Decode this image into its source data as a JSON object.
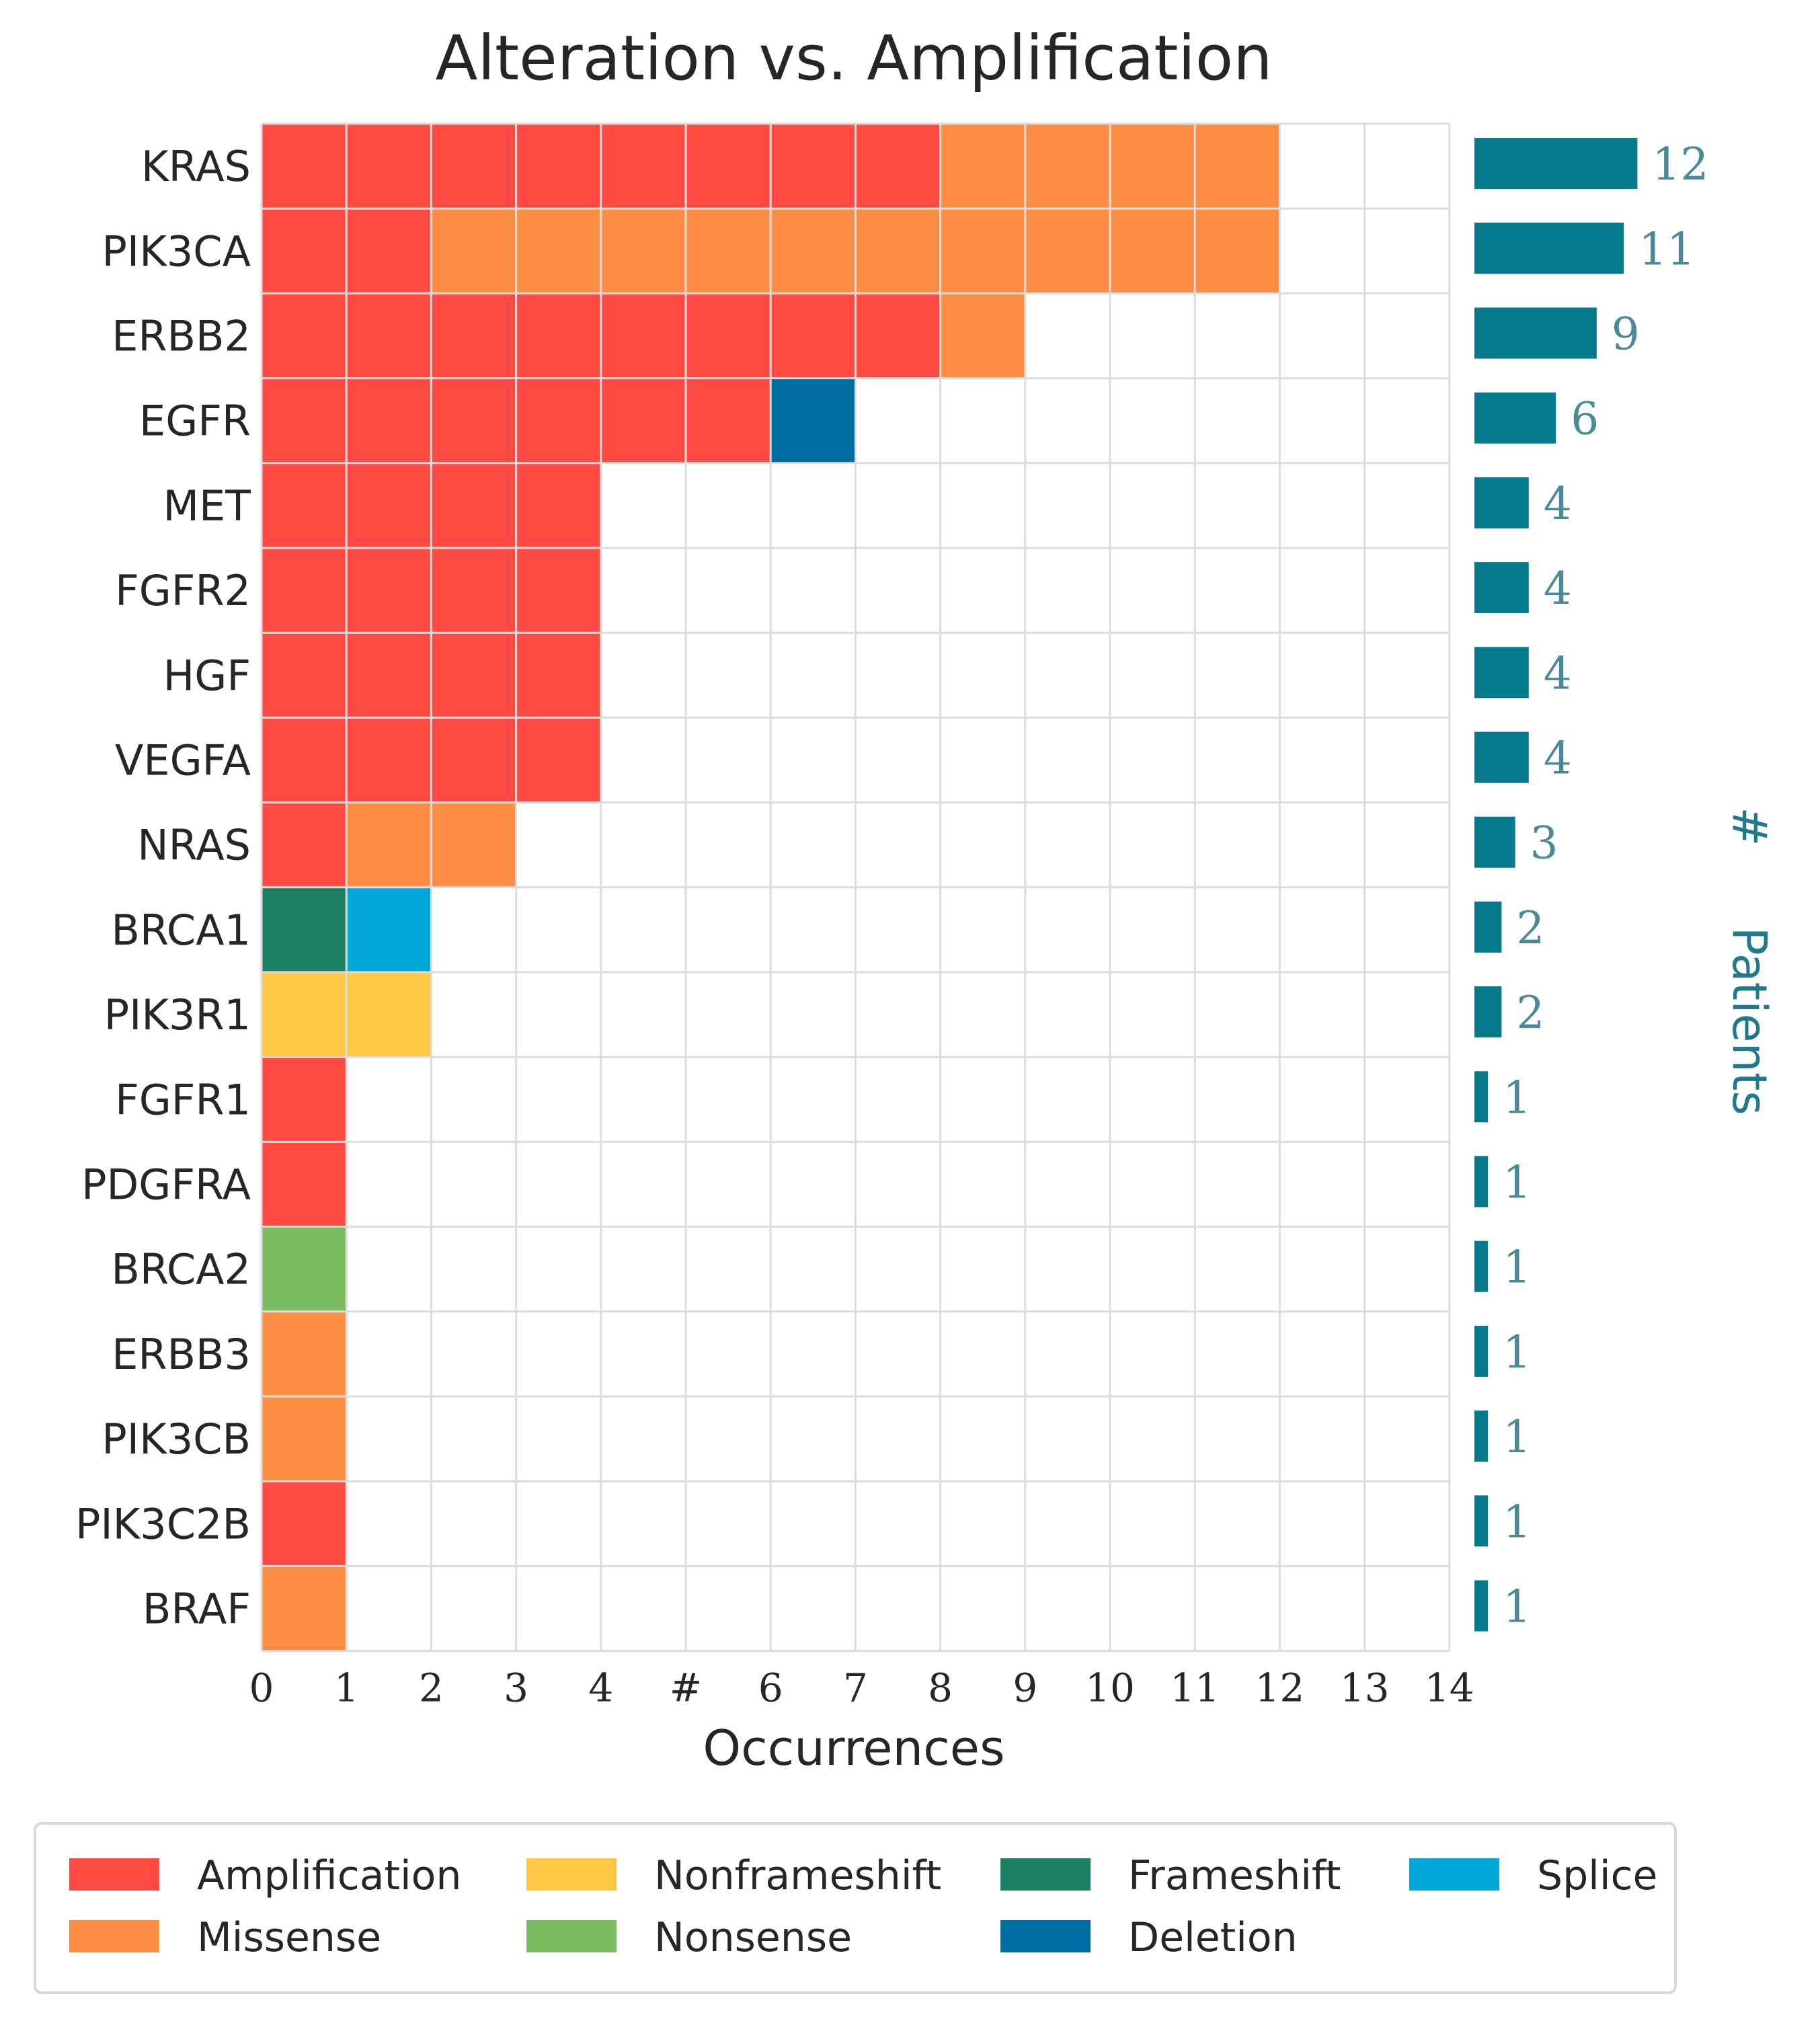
{
  "chart_data": {
    "type": "heatmap",
    "title": "Alteration vs. Amplification",
    "xlabel": "Occurrences",
    "xlim": [
      0,
      14
    ],
    "x_ticks": [
      "0",
      "1",
      "2",
      "3",
      "4",
      "#",
      "6",
      "7",
      "8",
      "9",
      "10",
      "11",
      "12",
      "13",
      "14"
    ],
    "right_axis_label_prefix": "#",
    "right_axis_label": "Patients",
    "legend_location": "bottom",
    "categories": {
      "Amplification": "#fe4a42",
      "Missense": "#fd8d42",
      "Nonframeshift": "#fec844",
      "Nonsense": "#78bc5f",
      "Frameshift": "#1c7f61",
      "Deletion": "#006ea3",
      "Splice": "#00a8d8"
    },
    "legend": [
      {
        "label": "Amplification",
        "color": "#fe4a42"
      },
      {
        "label": "Missense",
        "color": "#fd8d42"
      },
      {
        "label": "Nonframeshift",
        "color": "#fec844"
      },
      {
        "label": "Nonsense",
        "color": "#78bc5f"
      },
      {
        "label": "Frameshift",
        "color": "#1c7f61"
      },
      {
        "label": "Deletion",
        "color": "#006ea3"
      },
      {
        "label": "Splice",
        "color": "#00a8d8"
      }
    ],
    "patients_bar_color": "#047a8c",
    "genes": [
      {
        "name": "KRAS",
        "patients": 12,
        "cells": [
          "Amplification",
          "Amplification",
          "Amplification",
          "Amplification",
          "Amplification",
          "Amplification",
          "Amplification",
          "Amplification",
          "Missense",
          "Missense",
          "Missense",
          "Missense"
        ]
      },
      {
        "name": "PIK3CA",
        "patients": 11,
        "cells": [
          "Amplification",
          "Amplification",
          "Missense",
          "Missense",
          "Missense",
          "Missense",
          "Missense",
          "Missense",
          "Missense",
          "Missense",
          "Missense",
          "Missense"
        ]
      },
      {
        "name": "ERBB2",
        "patients": 9,
        "cells": [
          "Amplification",
          "Amplification",
          "Amplification",
          "Amplification",
          "Amplification",
          "Amplification",
          "Amplification",
          "Amplification",
          "Missense"
        ]
      },
      {
        "name": "EGFR",
        "patients": 6,
        "cells": [
          "Amplification",
          "Amplification",
          "Amplification",
          "Amplification",
          "Amplification",
          "Amplification",
          "Deletion"
        ]
      },
      {
        "name": "MET",
        "patients": 4,
        "cells": [
          "Amplification",
          "Amplification",
          "Amplification",
          "Amplification"
        ]
      },
      {
        "name": "FGFR2",
        "patients": 4,
        "cells": [
          "Amplification",
          "Amplification",
          "Amplification",
          "Amplification"
        ]
      },
      {
        "name": "HGF",
        "patients": 4,
        "cells": [
          "Amplification",
          "Amplification",
          "Amplification",
          "Amplification"
        ]
      },
      {
        "name": "VEGFA",
        "patients": 4,
        "cells": [
          "Amplification",
          "Amplification",
          "Amplification",
          "Amplification"
        ]
      },
      {
        "name": "NRAS",
        "patients": 3,
        "cells": [
          "Amplification",
          "Missense",
          "Missense"
        ]
      },
      {
        "name": "BRCA1",
        "patients": 2,
        "cells": [
          "Frameshift",
          "Splice"
        ]
      },
      {
        "name": "PIK3R1",
        "patients": 2,
        "cells": [
          "Nonframeshift",
          "Nonframeshift"
        ]
      },
      {
        "name": "FGFR1",
        "patients": 1,
        "cells": [
          "Amplification"
        ]
      },
      {
        "name": "PDGFRA",
        "patients": 1,
        "cells": [
          "Amplification"
        ]
      },
      {
        "name": "BRCA2",
        "patients": 1,
        "cells": [
          "Nonsense"
        ]
      },
      {
        "name": "ERBB3",
        "patients": 1,
        "cells": [
          "Missense"
        ]
      },
      {
        "name": "PIK3CB",
        "patients": 1,
        "cells": [
          "Missense"
        ]
      },
      {
        "name": "PIK3C2B",
        "patients": 1,
        "cells": [
          "Amplification"
        ]
      },
      {
        "name": "BRAF",
        "patients": 1,
        "cells": [
          "Missense"
        ]
      }
    ]
  }
}
